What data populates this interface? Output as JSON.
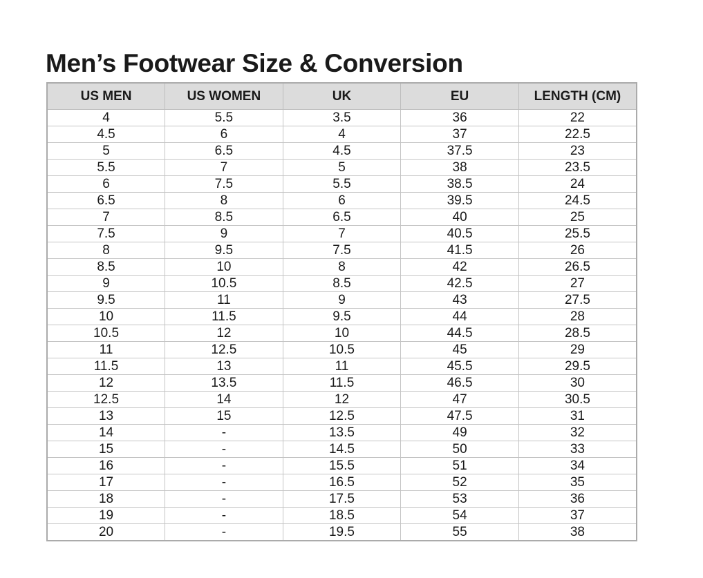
{
  "title": "Men’s Footwear Size & Conversion",
  "headers": [
    "US MEN",
    "US WOMEN",
    "UK",
    "EU",
    "LENGTH (CM)"
  ],
  "rows": [
    [
      "4",
      "5.5",
      "3.5",
      "36",
      "22"
    ],
    [
      "4.5",
      "6",
      "4",
      "37",
      "22.5"
    ],
    [
      "5",
      "6.5",
      "4.5",
      "37.5",
      "23"
    ],
    [
      "5.5",
      "7",
      "5",
      "38",
      "23.5"
    ],
    [
      "6",
      "7.5",
      "5.5",
      "38.5",
      "24"
    ],
    [
      "6.5",
      "8",
      "6",
      "39.5",
      "24.5"
    ],
    [
      "7",
      "8.5",
      "6.5",
      "40",
      "25"
    ],
    [
      "7.5",
      "9",
      "7",
      "40.5",
      "25.5"
    ],
    [
      "8",
      "9.5",
      "7.5",
      "41.5",
      "26"
    ],
    [
      "8.5",
      "10",
      "8",
      "42",
      "26.5"
    ],
    [
      "9",
      "10.5",
      "8.5",
      "42.5",
      "27"
    ],
    [
      "9.5",
      "11",
      "9",
      "43",
      "27.5"
    ],
    [
      "10",
      "11.5",
      "9.5",
      "44",
      "28"
    ],
    [
      "10.5",
      "12",
      "10",
      "44.5",
      "28.5"
    ],
    [
      "11",
      "12.5",
      "10.5",
      "45",
      "29"
    ],
    [
      "11.5",
      "13",
      "11",
      "45.5",
      "29.5"
    ],
    [
      "12",
      "13.5",
      "11.5",
      "46.5",
      "30"
    ],
    [
      "12.5",
      "14",
      "12",
      "47",
      "30.5"
    ],
    [
      "13",
      "15",
      "12.5",
      "47.5",
      "31"
    ],
    [
      "14",
      "-",
      "13.5",
      "49",
      "32"
    ],
    [
      "15",
      "-",
      "14.5",
      "50",
      "33"
    ],
    [
      "16",
      "-",
      "15.5",
      "51",
      "34"
    ],
    [
      "17",
      "-",
      "16.5",
      "52",
      "35"
    ],
    [
      "18",
      "-",
      "17.5",
      "53",
      "36"
    ],
    [
      "19",
      "-",
      "18.5",
      "54",
      "37"
    ],
    [
      "20",
      "-",
      "19.5",
      "55",
      "38"
    ]
  ]
}
